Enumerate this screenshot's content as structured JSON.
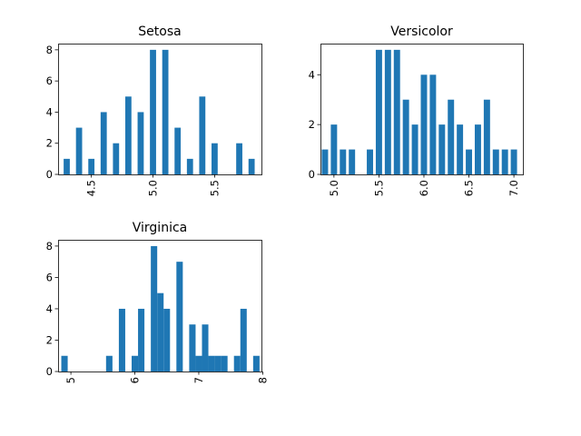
{
  "chart_data": [
    {
      "type": "bar",
      "title": "Setosa",
      "xlim": [
        4.23,
        5.88
      ],
      "ylim": [
        0,
        8.4
      ],
      "xticks": [
        4.5,
        5.0,
        5.5
      ],
      "yticks": [
        0,
        2,
        4,
        6,
        8
      ],
      "bar_width": 0.05,
      "x": [
        4.3,
        4.4,
        4.5,
        4.6,
        4.7,
        4.8,
        4.9,
        5.0,
        5.1,
        5.2,
        5.3,
        5.4,
        5.5,
        5.7,
        5.8
      ],
      "values": [
        1,
        3,
        1,
        4,
        2,
        5,
        4,
        8,
        8,
        3,
        1,
        5,
        2,
        2,
        1
      ],
      "color": "#1f77b4"
    },
    {
      "type": "bar",
      "title": "Versicolor",
      "xlim": [
        4.85,
        7.1
      ],
      "ylim": [
        0,
        5.25
      ],
      "xticks": [
        5.0,
        5.5,
        6.0,
        6.5,
        7.0
      ],
      "yticks": [
        0,
        2,
        4
      ],
      "bar_width": 0.07,
      "x": [
        4.9,
        5.0,
        5.1,
        5.2,
        5.4,
        5.5,
        5.6,
        5.7,
        5.8,
        5.9,
        6.0,
        6.1,
        6.2,
        6.3,
        6.4,
        6.5,
        6.6,
        6.7,
        6.8,
        6.9,
        7.0
      ],
      "values": [
        1,
        2,
        1,
        1,
        1,
        5,
        5,
        5,
        3,
        2,
        4,
        4,
        2,
        3,
        2,
        1,
        2,
        3,
        1,
        1,
        1
      ],
      "color": "#1f77b4"
    },
    {
      "type": "bar",
      "title": "Virginica",
      "xlim": [
        4.8,
        7.98
      ],
      "ylim": [
        0,
        8.4
      ],
      "xticks": [
        5,
        6,
        7,
        8
      ],
      "yticks": [
        0,
        2,
        4,
        6,
        8
      ],
      "bar_width": 0.1,
      "x": [
        4.9,
        5.6,
        5.8,
        6.0,
        6.1,
        6.3,
        6.4,
        6.5,
        6.7,
        6.9,
        7.0,
        7.1,
        7.2,
        7.3,
        7.4,
        7.6,
        7.7,
        7.9
      ],
      "values": [
        1,
        1,
        4,
        1,
        4,
        8,
        5,
        4,
        7,
        3,
        1,
        3,
        1,
        1,
        1,
        1,
        4,
        1
      ],
      "color": "#1f77b4"
    }
  ]
}
